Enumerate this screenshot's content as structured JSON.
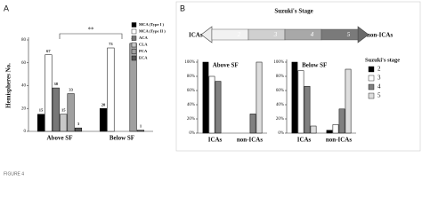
{
  "figure_label": "FIGURE 4",
  "panel_labels": [
    "A",
    "B"
  ],
  "stage_diagram": {
    "title": "Suzuki's Stage",
    "left": "ICAs",
    "right": "non-ICAs",
    "stages": [
      2,
      3,
      4,
      5
    ]
  },
  "chart_data": [
    {
      "type": "bar",
      "y_label": "Hemispheres No.",
      "categories": [
        "Above SF",
        "Below SF"
      ],
      "ylim": [
        0,
        80
      ],
      "yticks": [
        0,
        20,
        40,
        60,
        80
      ],
      "annotation": "**",
      "legend": "upper right",
      "series": [
        {
          "name": "MCA (Type I )",
          "color": "#000000",
          "values": [
            15,
            20
          ]
        },
        {
          "name": "MCA (Type II )",
          "color": "#ffffff",
          "values": [
            67,
            73
          ]
        },
        {
          "name": "ACA",
          "color": "#777777",
          "values": [
            38,
            null
          ]
        },
        {
          "name": "CLA",
          "color": "#c8c8c8",
          "values": [
            15,
            null
          ]
        },
        {
          "name": "PCA",
          "color": "#a0a0a0",
          "values": [
            33,
            77
          ]
        },
        {
          "name": "ECA",
          "color": "#555555",
          "values": [
            3,
            1
          ]
        }
      ]
    },
    {
      "type": "bar",
      "title": "Above  SF",
      "categories": [
        "ICAs",
        "non-ICAs"
      ],
      "ylim": [
        0,
        100
      ],
      "yticks": [
        {
          "value": 0,
          "label": "0%"
        },
        {
          "value": 20,
          "label": "20%"
        },
        {
          "value": 40,
          "label": "40%"
        },
        {
          "value": 60,
          "label": "60%"
        },
        {
          "value": 80,
          "label": "80%"
        },
        {
          "value": 100,
          "label": "100%"
        }
      ],
      "series": [
        {
          "color": "#000000",
          "values": [
            100,
            0
          ]
        },
        {
          "color": "#ffffff",
          "values": [
            80,
            0
          ]
        },
        {
          "color": "#808080",
          "values": [
            73,
            27
          ]
        },
        {
          "color": "#dddddd",
          "values": [
            0,
            100
          ]
        }
      ]
    },
    {
      "type": "bar",
      "title": "Below  SF",
      "categories": [
        "ICAs",
        "non-ICAs"
      ],
      "ylim": [
        0,
        100
      ],
      "yticks": [
        {
          "value": 0,
          "label": "0%"
        },
        {
          "value": 20,
          "label": "20%"
        },
        {
          "value": 40,
          "label": "40%"
        },
        {
          "value": 60,
          "label": "60%"
        },
        {
          "value": 80,
          "label": "80%"
        },
        {
          "value": 100,
          "label": "100%"
        }
      ],
      "legend_title": "Suzuki's stage",
      "legend": "right",
      "series": [
        {
          "name": "2",
          "color": "#000000",
          "values": [
            100,
            4
          ]
        },
        {
          "name": "3",
          "color": "#ffffff",
          "values": [
            88,
            12
          ]
        },
        {
          "name": "4",
          "color": "#808080",
          "values": [
            66,
            34
          ]
        },
        {
          "name": "5",
          "color": "#dddddd",
          "values": [
            10,
            90
          ]
        }
      ]
    }
  ]
}
